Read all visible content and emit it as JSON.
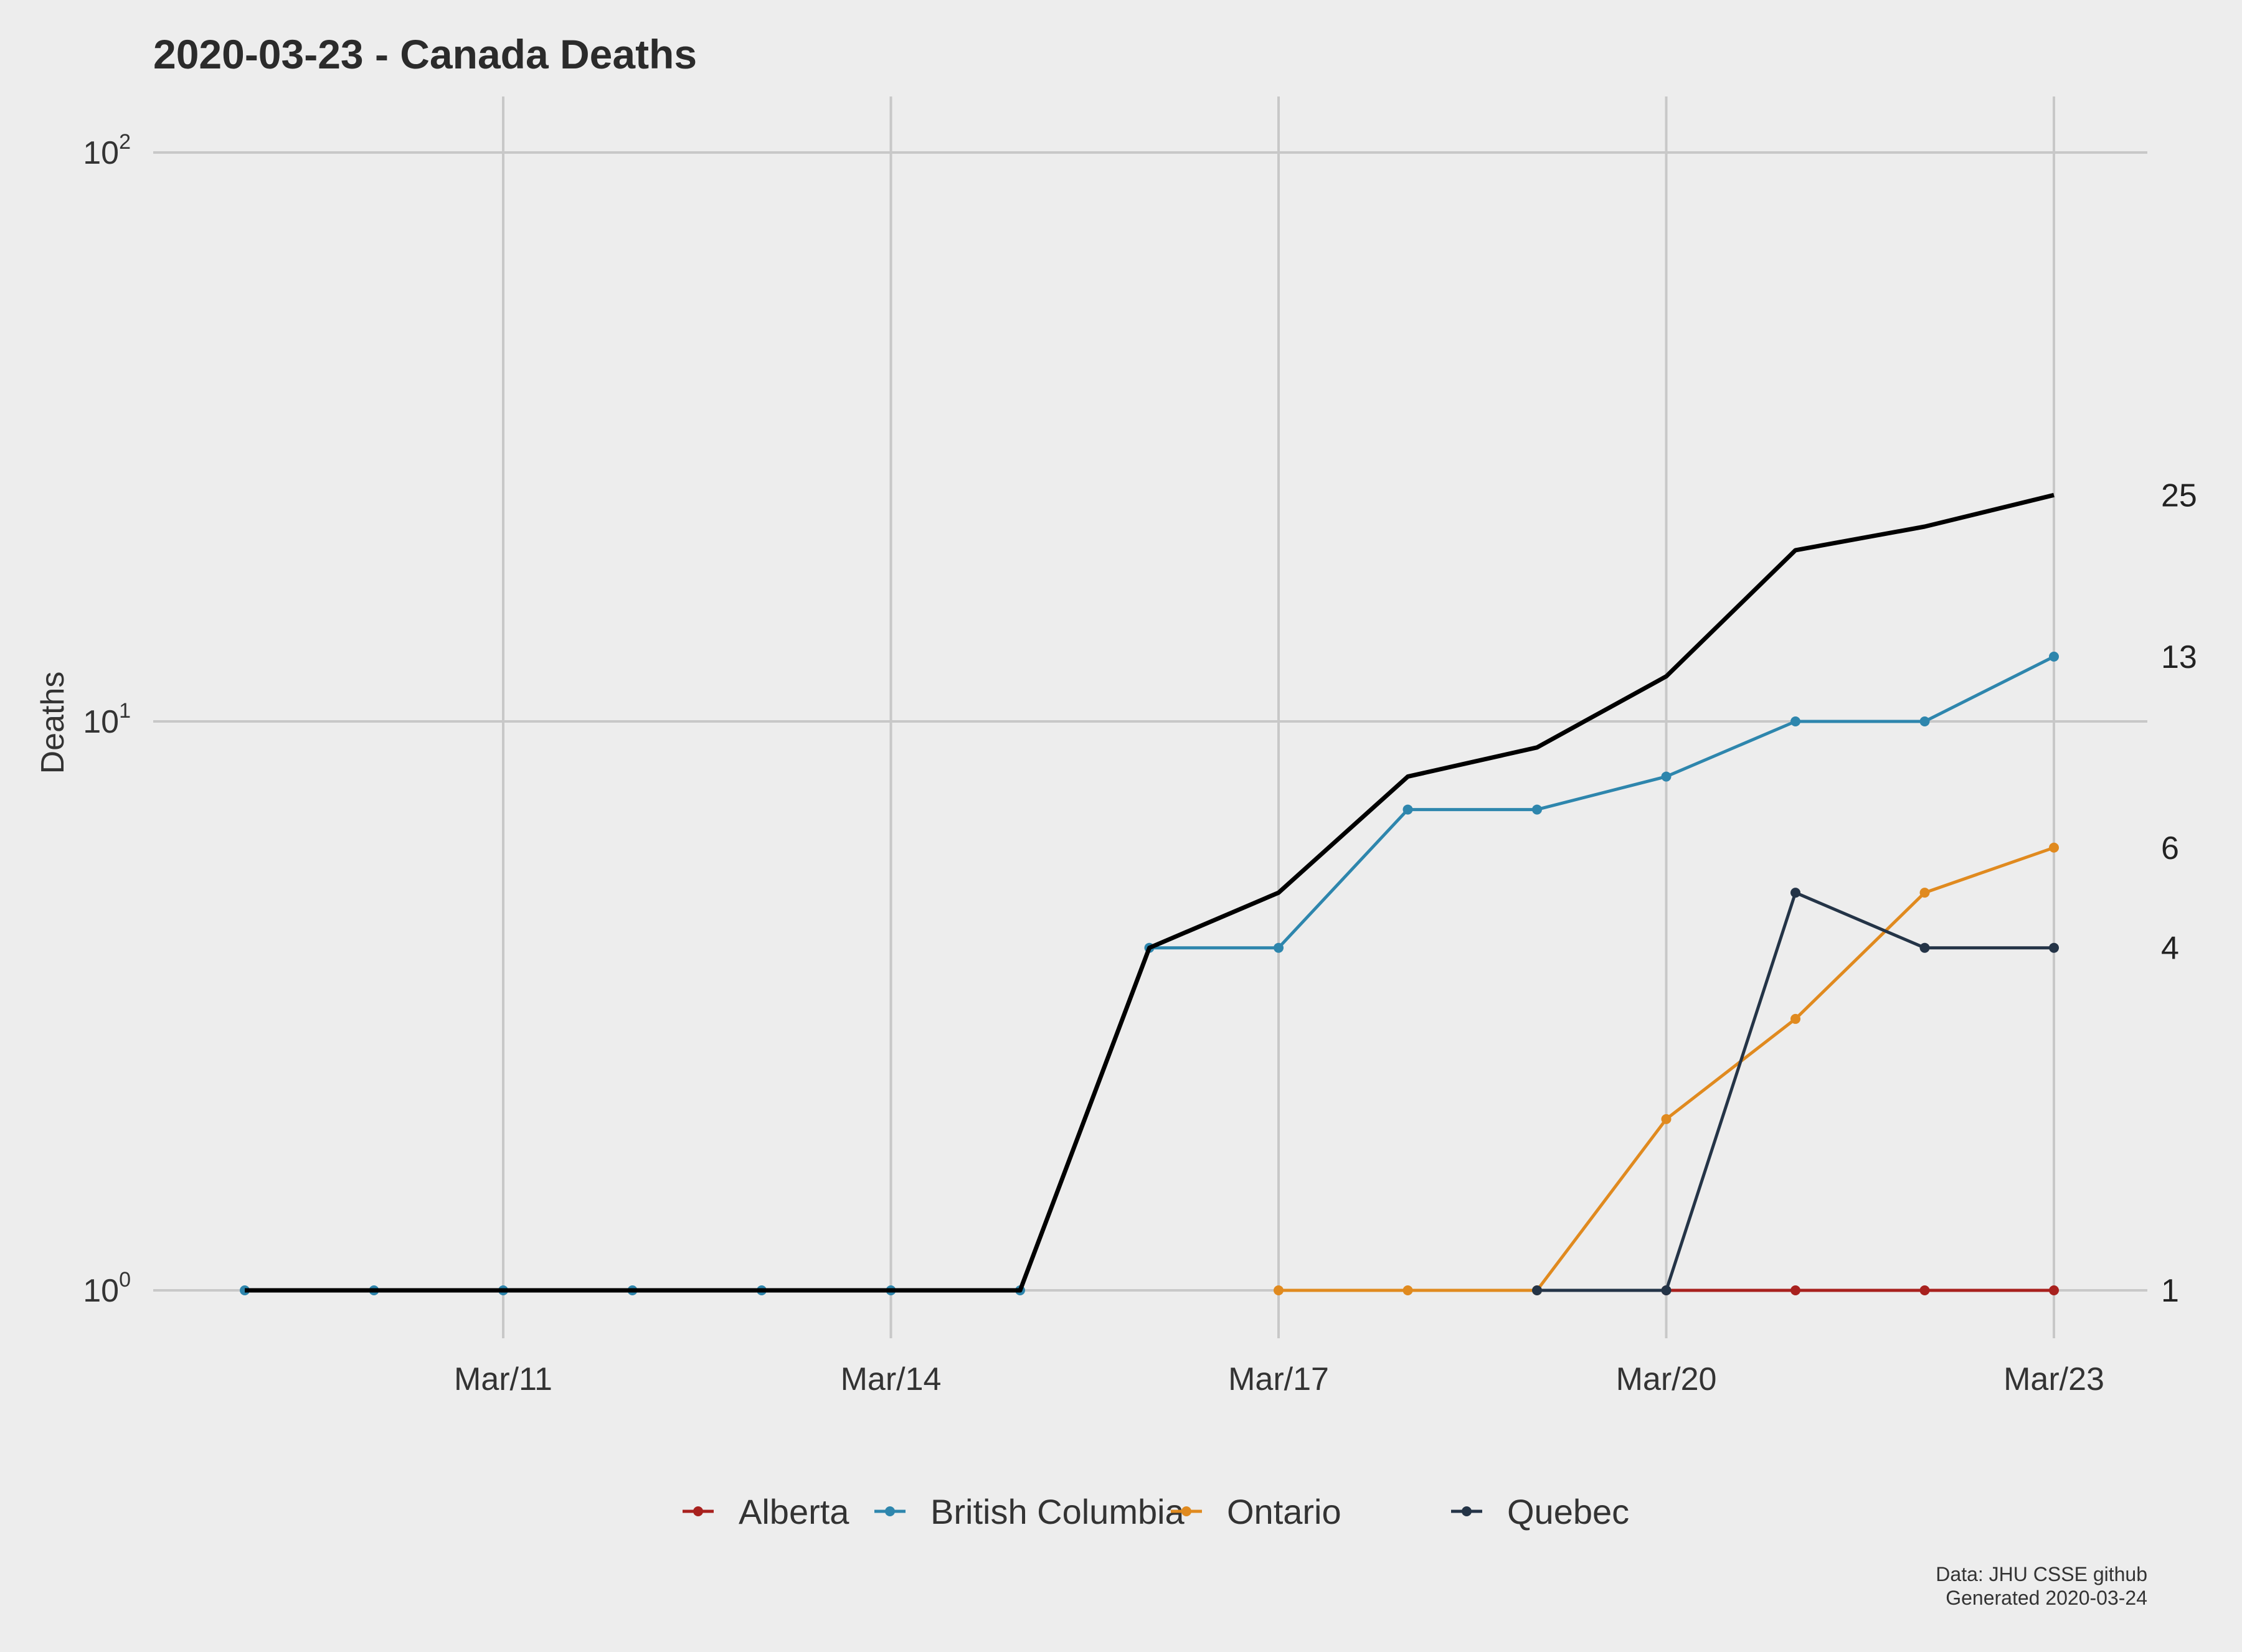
{
  "chart_data": {
    "type": "line",
    "title": "2020-03-23 - Canada Deaths",
    "ylabel": "Deaths",
    "xlabel": "",
    "y_scale": "log10",
    "ylim": [
      1,
      100
    ],
    "y_ticks": [
      {
        "value": 1,
        "base": "10",
        "exp": "0"
      },
      {
        "value": 10,
        "base": "10",
        "exp": "1"
      },
      {
        "value": 100,
        "base": "10",
        "exp": "2"
      }
    ],
    "x_ticks": [
      {
        "day": 11,
        "label": "Mar/11"
      },
      {
        "day": 14,
        "label": "Mar/14"
      },
      {
        "day": 17,
        "label": "Mar/17"
      },
      {
        "day": 20,
        "label": "Mar/20"
      },
      {
        "day": 23,
        "label": "Mar/23"
      }
    ],
    "xlim": [
      8.5,
      23.7
    ],
    "grid": true,
    "legend_position": "bottom",
    "total": {
      "name": "Total",
      "color": "#000000",
      "x": [
        9,
        10,
        11,
        12,
        13,
        14,
        15,
        16,
        17,
        18,
        19,
        20,
        21,
        22,
        23
      ],
      "y": [
        1,
        1,
        1,
        1,
        1,
        1,
        1,
        4,
        5,
        8,
        9,
        12,
        20,
        22,
        25
      ]
    },
    "series": [
      {
        "name": "Alberta",
        "color": "#a8211e",
        "x": [
          20,
          21,
          22,
          23
        ],
        "y": [
          1,
          1,
          1,
          1
        ]
      },
      {
        "name": "British Columbia",
        "color": "#2e86ad",
        "x": [
          9,
          10,
          11,
          12,
          13,
          14,
          15,
          16,
          17,
          18,
          19,
          20,
          21,
          22,
          23
        ],
        "y": [
          1,
          1,
          1,
          1,
          1,
          1,
          1,
          4,
          4,
          7,
          7,
          8,
          10,
          10,
          13
        ]
      },
      {
        "name": "Ontario",
        "color": "#e08a1f",
        "x": [
          17,
          18,
          19,
          20,
          21,
          22,
          23
        ],
        "y": [
          1,
          1,
          1,
          2,
          3,
          5,
          6
        ]
      },
      {
        "name": "Quebec",
        "color": "#243447",
        "x": [
          19,
          20,
          21,
          22,
          23
        ],
        "y": [
          1,
          1,
          5,
          4,
          4
        ]
      }
    ],
    "end_labels": [
      {
        "value": 25,
        "text": "25"
      },
      {
        "value": 13,
        "text": "13"
      },
      {
        "value": 6,
        "text": "6"
      },
      {
        "value": 4,
        "text": "4"
      },
      {
        "value": 1,
        "text": "1"
      }
    ],
    "caption": [
      "Data: JHU CSSE github",
      "Generated 2020-03-24"
    ]
  }
}
